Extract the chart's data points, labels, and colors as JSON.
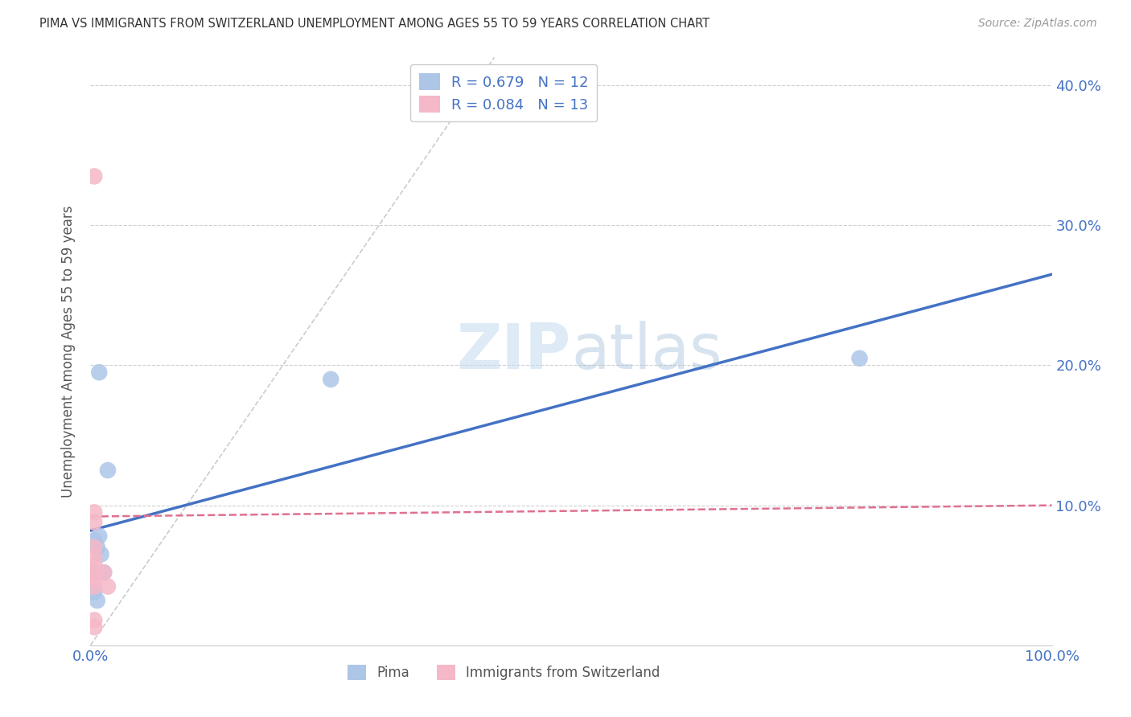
{
  "title": "PIMA VS IMMIGRANTS FROM SWITZERLAND UNEMPLOYMENT AMONG AGES 55 TO 59 YEARS CORRELATION CHART",
  "source": "Source: ZipAtlas.com",
  "ylabel": "Unemployment Among Ages 55 to 59 years",
  "xlabel": "",
  "xlim": [
    0,
    1.0
  ],
  "ylim": [
    0,
    0.42
  ],
  "R_pima": 0.679,
  "N_pima": 12,
  "R_swiss": 0.084,
  "N_swiss": 13,
  "pima_color": "#adc6e8",
  "swiss_color": "#f5b8c8",
  "pima_line_color": "#4472c4",
  "swiss_line_color": "#e07090",
  "diagonal_color": "#cccccc",
  "watermark": "ZIPatlas",
  "background_color": "#ffffff",
  "pima_line_x0": 0.0,
  "pima_line_y0": 0.082,
  "pima_line_x1": 1.0,
  "pima_line_y1": 0.265,
  "swiss_line_x0": 0.0,
  "swiss_line_y0": 0.092,
  "swiss_line_x1": 1.0,
  "swiss_line_y1": 0.1,
  "pima_scatter_x": [
    0.009,
    0.018,
    0.009,
    0.004,
    0.007,
    0.011,
    0.014,
    0.004,
    0.007,
    0.25,
    0.8,
    0.004
  ],
  "pima_scatter_y": [
    0.195,
    0.125,
    0.078,
    0.075,
    0.07,
    0.065,
    0.052,
    0.038,
    0.032,
    0.19,
    0.205,
    0.052
  ],
  "swiss_scatter_x": [
    0.004,
    0.004,
    0.004,
    0.004,
    0.004,
    0.004,
    0.004,
    0.004,
    0.004,
    0.004,
    0.004,
    0.014,
    0.018
  ],
  "swiss_scatter_y": [
    0.335,
    0.095,
    0.088,
    0.07,
    0.063,
    0.058,
    0.052,
    0.048,
    0.042,
    0.018,
    0.013,
    0.052,
    0.042
  ]
}
